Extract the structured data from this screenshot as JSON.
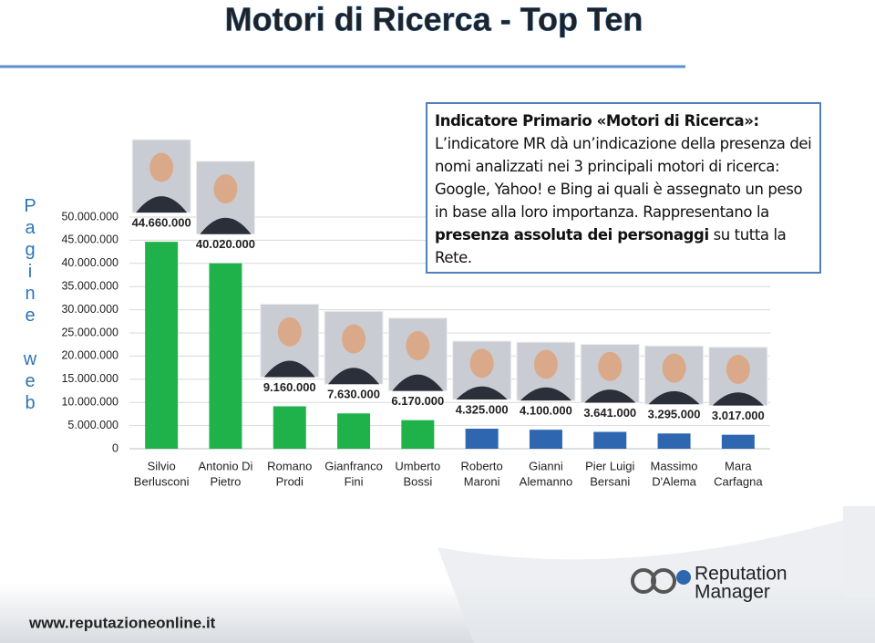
{
  "title": "Motori di Ricerca - Top Ten",
  "box": {
    "heading": "Indicatore Primario «Motori di Ricerca»:",
    "body": "L’indicatore MR dà un’indicazione della presenza dei nomi analizzati nei 3 principali motori di ricerca: Google, Yahoo! e Bing ai quali è assegnato un peso in base alla loro importanza. Rappresentano la ",
    "body_bold": "presenza assoluta dei personaggi",
    "body_end": " su tutta la Rete."
  },
  "footer": "www.reputazioneonline.it",
  "logo": [
    "Reputation",
    "Manager"
  ],
  "chart_data": {
    "type": "bar",
    "y_label": "Pagine web",
    "categories": [
      [
        "Silvio",
        "Berlusconi"
      ],
      [
        "Antonio Di",
        "Pietro"
      ],
      [
        "Romano",
        "Prodi"
      ],
      [
        "Gianfranco",
        "Fini"
      ],
      [
        "Umberto",
        "Bossi"
      ],
      [
        "Roberto",
        "Maroni"
      ],
      [
        "Gianni",
        "Alemanno"
      ],
      [
        "Pier Luigi",
        "Bersani"
      ],
      [
        "Massimo",
        "D'Alema"
      ],
      [
        "Mara",
        "Carfagna"
      ]
    ],
    "values": [
      44660000,
      40020000,
      9160000,
      7630000,
      6170000,
      4325000,
      4100000,
      3641000,
      3295000,
      3017000
    ],
    "value_labels": [
      "44.660.000",
      "40.020.000",
      "9.160.000",
      "7.630.000",
      "6.170.000",
      "4.325.000",
      "4.100.000",
      "3.641.000",
      "3.295.000",
      "3.017.000"
    ],
    "colors": [
      "#1fb24a",
      "#1fb24a",
      "#1fb24a",
      "#1fb24a",
      "#1fb24a",
      "#2e66b0",
      "#2e66b0",
      "#2e66b0",
      "#2e66b0",
      "#2e66b0"
    ],
    "ylim": [
      0,
      50000000
    ],
    "yticks": [
      0,
      {
        "value": 5000000,
        "label": "5.000.000"
      },
      {
        "value": 10000000,
        "label": "10.000.000"
      },
      {
        "value": 15000000,
        "label": "15.000.000"
      },
      {
        "value": 20000000,
        "label": "20.000.000"
      },
      {
        "value": 25000000,
        "label": "25.000.000"
      },
      {
        "value": 30000000,
        "label": "30.000.000"
      },
      {
        "value": 35000000,
        "label": "35.000.000"
      },
      {
        "value": 40000000,
        "label": "40.000.000"
      },
      {
        "value": 45000000,
        "label": "45.000.000"
      },
      {
        "value": 50000000,
        "label": "50.000.000"
      }
    ],
    "grid": true
  }
}
